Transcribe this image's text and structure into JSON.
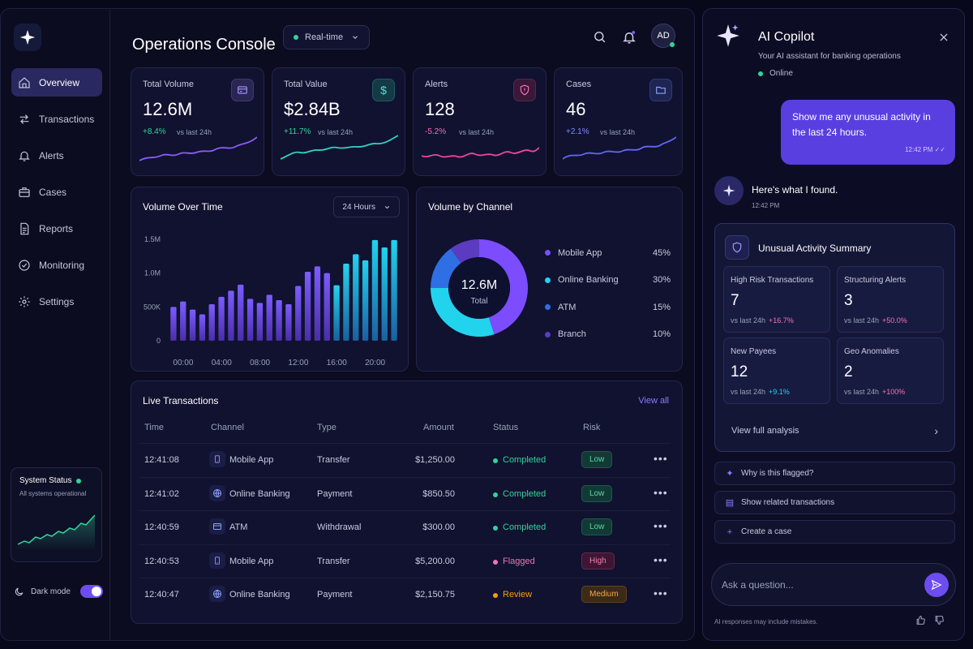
{
  "header": {
    "title": "Operations Console",
    "mode": "Real-time",
    "avatar": "AD"
  },
  "sidebar": {
    "items": [
      {
        "label": "Overview",
        "icon": "home-icon",
        "active": true
      },
      {
        "label": "Transactions",
        "icon": "transfer-icon"
      },
      {
        "label": "Alerts",
        "icon": "bell-icon"
      },
      {
        "label": "Cases",
        "icon": "briefcase-icon"
      },
      {
        "label": "Reports",
        "icon": "report-icon"
      },
      {
        "label": "Monitoring",
        "icon": "check-circle-icon"
      },
      {
        "label": "Settings",
        "icon": "gear-icon"
      }
    ],
    "system_status": {
      "title": "System Status",
      "text": "All systems operational"
    },
    "dark_mode": {
      "label": "Dark mode",
      "on": true
    }
  },
  "kpis": [
    {
      "label": "Total Volume",
      "value": "12.6M",
      "change": "+8.4%",
      "vs": "vs last 24h",
      "trend": "up",
      "icon": "card-icon",
      "color": "#8b5cf6"
    },
    {
      "label": "Total Value",
      "value": "$2.84B",
      "change": "+11.7%",
      "vs": "vs last 24h",
      "trend": "up",
      "icon": "dollar-icon",
      "color": "#22d3ee"
    },
    {
      "label": "Alerts",
      "value": "128",
      "change": "-5.2%",
      "vs": "vs last 24h",
      "trend": "down",
      "icon": "shield-icon",
      "color": "#f472b6"
    },
    {
      "label": "Cases",
      "value": "46",
      "change": "+2.1%",
      "vs": "vs last 24h",
      "trend": "up",
      "icon": "folder-icon",
      "color": "#7c6cf6"
    }
  ],
  "volume_chart": {
    "title": "Volume Over Time",
    "range": "24 Hours"
  },
  "chart_data": {
    "type": "bar",
    "title": "Volume Over Time",
    "y_ticks": [
      "1.5M",
      "1.0M",
      "500K",
      "0"
    ],
    "x_ticks": [
      "00:00",
      "04:00",
      "08:00",
      "12:00",
      "16:00",
      "20:00"
    ],
    "ylim": [
      0,
      1500000
    ],
    "values": [
      500000,
      580000,
      460000,
      390000,
      540000,
      650000,
      740000,
      830000,
      620000,
      560000,
      680000,
      600000,
      540000,
      810000,
      1020000,
      1100000,
      1000000,
      820000,
      1140000,
      1280000,
      1190000,
      1490000,
      1380000,
      1490000
    ]
  },
  "channel_chart": {
    "title": "Volume by Channel",
    "total_value": "12.6M",
    "total_label": "Total",
    "slices": [
      {
        "name": "Mobile App",
        "pct": "45%",
        "value": 45,
        "color": "#7c4dff"
      },
      {
        "name": "Online Banking",
        "pct": "30%",
        "value": 30,
        "color": "#22d3ee"
      },
      {
        "name": "ATM",
        "pct": "15%",
        "value": 15,
        "color": "#2f6fe4"
      },
      {
        "name": "Branch",
        "pct": "10%",
        "value": 10,
        "color": "#5b3bbf"
      }
    ]
  },
  "transactions": {
    "title": "Live Transactions",
    "view_all": "View all",
    "columns": [
      "Time",
      "Channel",
      "Type",
      "Amount",
      "Status",
      "Risk"
    ],
    "rows": [
      {
        "time": "12:41:08",
        "channel": "Mobile App",
        "icon": "phone-icon",
        "type": "Transfer",
        "amount": "$1,250.00",
        "status": "Completed",
        "risk": "Low"
      },
      {
        "time": "12:41:02",
        "channel": "Online Banking",
        "icon": "globe-icon",
        "type": "Payment",
        "amount": "$850.50",
        "status": "Completed",
        "risk": "Low"
      },
      {
        "time": "12:40:59",
        "channel": "ATM",
        "icon": "atm-icon",
        "type": "Withdrawal",
        "amount": "$300.00",
        "status": "Completed",
        "risk": "Low"
      },
      {
        "time": "12:40:53",
        "channel": "Mobile App",
        "icon": "phone-icon",
        "type": "Transfer",
        "amount": "$5,200.00",
        "status": "Flagged",
        "risk": "High"
      },
      {
        "time": "12:40:47",
        "channel": "Online Banking",
        "icon": "globe-icon",
        "type": "Payment",
        "amount": "$2,150.75",
        "status": "Review",
        "risk": "Medium"
      }
    ]
  },
  "status_colors": {
    "Completed": "#34d399",
    "Flagged": "#f472b6",
    "Review": "#f59e0b"
  },
  "risk_colors": {
    "Low": {
      "bg": "#113a35",
      "fg": "#5fd6a4"
    },
    "High": {
      "bg": "#3e1633",
      "fg": "#f47fb4"
    },
    "Medium": {
      "bg": "#3b2a16",
      "fg": "#f5a94b"
    }
  },
  "copilot": {
    "title": "AI Copilot",
    "subtitle": "Your AI assistant for banking operations",
    "status": "Online",
    "user_message": "Show me any unusual activity in the last 24 hours.",
    "user_time": "12:42 PM",
    "bot_message": "Here's what I found.",
    "bot_time": "12:42 PM",
    "summary": {
      "title": "Unusual Activity Summary",
      "metrics": [
        {
          "label": "High Risk Transactions",
          "value": "7",
          "vs": "vs last 24h",
          "change": "+16.7%",
          "color": "#f472b6"
        },
        {
          "label": "Structuring Alerts",
          "value": "3",
          "vs": "vs last 24h",
          "change": "+50.0%",
          "color": "#f472b6"
        },
        {
          "label": "New Payees",
          "value": "12",
          "vs": "vs last 24h",
          "change": "+9.1%",
          "color": "#22d3ee"
        },
        {
          "label": "Geo Anomalies",
          "value": "2",
          "vs": "vs last 24h",
          "change": "+100%",
          "color": "#f472b6"
        }
      ],
      "link": "View full analysis"
    },
    "suggestions": [
      {
        "label": "Why is this flagged?",
        "icon": "sparkle-icon"
      },
      {
        "label": "Show related transactions",
        "icon": "list-icon"
      },
      {
        "label": "Create a case",
        "icon": "plus-icon"
      }
    ],
    "input_placeholder": "Ask a question...",
    "disclaimer": "AI responses may include mistakes."
  }
}
